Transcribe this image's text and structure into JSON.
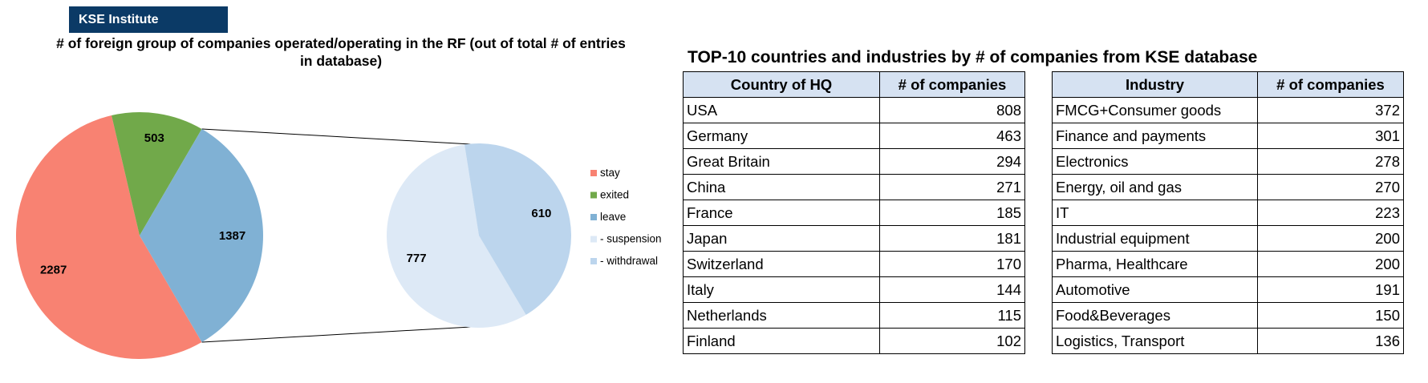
{
  "brand": "KSE Institute",
  "chart_data": [
    {
      "type": "pie",
      "title": "# of foreign group of companies operated/operating in the RF (out of total # of entries in database)",
      "categories": [
        "stay",
        "exited",
        "leave"
      ],
      "values": [
        2287,
        503,
        1387
      ],
      "colors": [
        "#f88272",
        "#71a94a",
        "#80b1d4"
      ],
      "legend_position": "right"
    },
    {
      "type": "pie",
      "title": "",
      "categories": [
        "- suspension",
        "- withdrawal"
      ],
      "values": [
        777,
        610
      ],
      "colors": [
        "#dde9f6",
        "#bcd5ed"
      ],
      "legend_position": "right"
    }
  ],
  "legend": [
    {
      "label": "stay",
      "color": "#f88272"
    },
    {
      "label": "exited",
      "color": "#71a94a"
    },
    {
      "label": "leave",
      "color": "#80b1d4"
    },
    {
      "label": "- suspension",
      "color": "#dde9f6"
    },
    {
      "label": "- withdrawal",
      "color": "#bcd5ed"
    }
  ],
  "tables": {
    "title": "TOP-10 countries and industries by # of companies from KSE database",
    "country": {
      "headers": [
        "Country of HQ",
        "# of companies"
      ],
      "rows": [
        [
          "USA",
          "808"
        ],
        [
          "Germany",
          "463"
        ],
        [
          "Great Britain",
          "294"
        ],
        [
          "China",
          "271"
        ],
        [
          "France",
          "185"
        ],
        [
          "Japan",
          "181"
        ],
        [
          "Switzerland",
          "170"
        ],
        [
          "Italy",
          "144"
        ],
        [
          "Netherlands",
          "115"
        ],
        [
          "Finland",
          "102"
        ]
      ]
    },
    "industry": {
      "headers": [
        "Industry",
        "# of companies"
      ],
      "rows": [
        [
          "FMCG+Consumer goods",
          "372"
        ],
        [
          "Finance and payments",
          "301"
        ],
        [
          "Electronics",
          "278"
        ],
        [
          "Energy, oil and gas",
          "270"
        ],
        [
          "IT",
          "223"
        ],
        [
          "Industrial equipment",
          "200"
        ],
        [
          "Pharma, Healthcare",
          "200"
        ],
        [
          "Automotive",
          "191"
        ],
        [
          "Food&Beverages",
          "150"
        ],
        [
          "Logistics, Transport",
          "136"
        ]
      ]
    }
  }
}
